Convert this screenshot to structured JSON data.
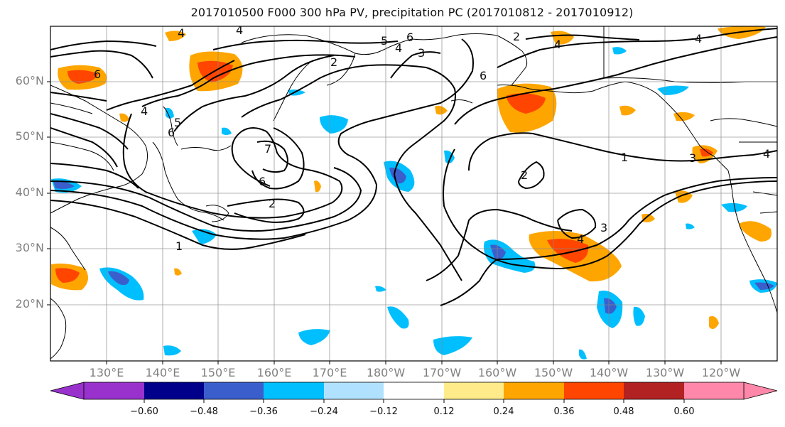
{
  "title": "2017010500 F000 300 hPa PV, precipitation PC (2017010812 - 2017010912)",
  "lat_labels": [
    "60°N",
    "50°N",
    "40°N",
    "30°N",
    "20°N"
  ],
  "lon_labels": [
    "130°E",
    "140°E",
    "150°E",
    "160°E",
    "170°E",
    "180°W",
    "170°W",
    "160°W",
    "150°W",
    "140°W",
    "130°W",
    "120°W"
  ],
  "colorbar": {
    "ticks": [
      "−0.60",
      "−0.48",
      "−0.36",
      "−0.24",
      "−0.12",
      "0.12",
      "0.24",
      "0.36",
      "0.48",
      "0.60"
    ],
    "colors": [
      "#9932cc",
      "#00008b",
      "#3a5fcd",
      "#00bfff",
      "#b0e2ff",
      "#ffffff",
      "#ffeb8a",
      "#ffa500",
      "#ff4500",
      "#b22222",
      "#ff88aa"
    ]
  },
  "contour_labels": [
    "4",
    "4",
    "5",
    "6",
    "4",
    "3",
    "2",
    "2",
    "4",
    "6",
    "6",
    "5",
    "4",
    "6",
    "7",
    "6",
    "2",
    "1",
    "2",
    "1",
    "4",
    "3",
    "3",
    "4",
    "4"
  ]
}
